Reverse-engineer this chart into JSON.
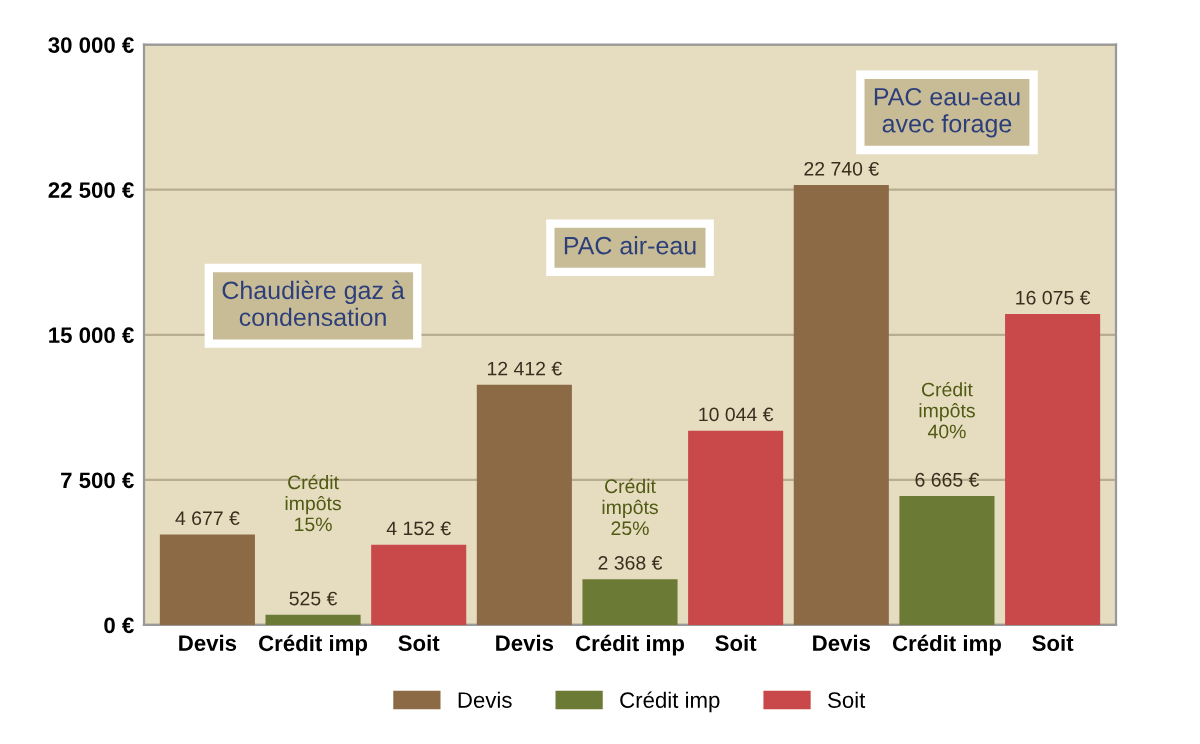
{
  "chart_data": {
    "type": "bar",
    "categories": [
      "Devis",
      "Crédit imp",
      "Soit",
      "Devis",
      "Crédit imp",
      "Soit",
      "Devis",
      "Crédit imp",
      "Soit"
    ],
    "series": [
      {
        "name": "Devis",
        "color": "#8b6a45",
        "values": [
          4677,
          null,
          null,
          12412,
          null,
          null,
          22740,
          null,
          null
        ],
        "value_labels": [
          "4 677 €",
          null,
          null,
          "12 412 €",
          null,
          null,
          "22 740 €",
          null,
          null
        ]
      },
      {
        "name": "Crédit imp",
        "color": "#6b7a35",
        "values": [
          null,
          525,
          null,
          null,
          2368,
          null,
          null,
          6665,
          null
        ],
        "value_labels": [
          null,
          "525 €",
          null,
          null,
          "2 368 €",
          null,
          null,
          "6 665 €",
          null
        ]
      },
      {
        "name": "Soit",
        "color": "#c9484a",
        "values": [
          null,
          null,
          4152,
          null,
          null,
          10044,
          null,
          null,
          16075
        ],
        "value_labels": [
          null,
          null,
          "4 152 €",
          null,
          null,
          "10 044 €",
          null,
          null,
          "16 075 €"
        ]
      }
    ],
    "ylim": [
      0,
      30000
    ],
    "yticks": [
      {
        "value": 0,
        "label": "0 €"
      },
      {
        "value": 7500,
        "label": "7 500 €"
      },
      {
        "value": 15000,
        "label": "15 000 €"
      },
      {
        "value": 22500,
        "label": "22 500 €"
      },
      {
        "value": 30000,
        "label": "30 000 €"
      }
    ],
    "annotations": [
      "Chaudière gaz à\ncondensation",
      "PAC air-eau",
      "PAC eau-eau\navec forage",
      "Crédit\nimpôts\n15%",
      "Crédit\nimpôts\n25%",
      "Crédit\nimpôts\n40%"
    ],
    "grid": "y",
    "legend": "bottom"
  }
}
